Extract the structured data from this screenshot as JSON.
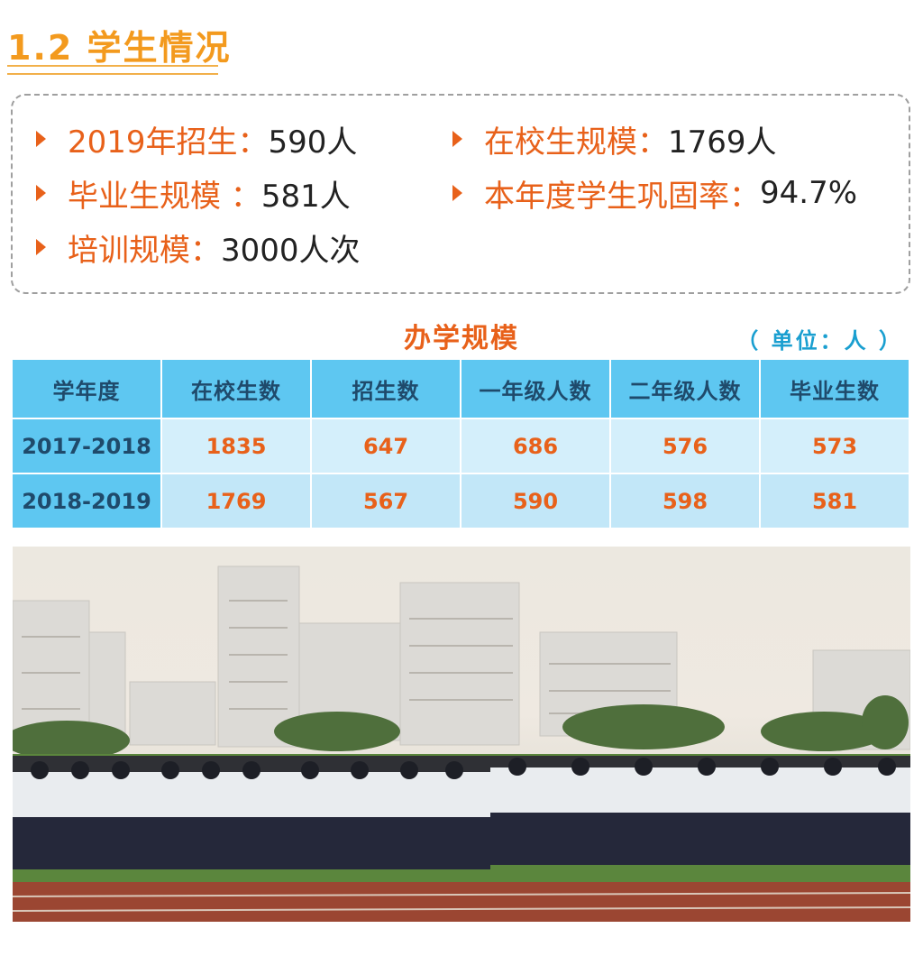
{
  "section": {
    "title": "1.2 学生情况"
  },
  "stats": [
    {
      "label": "2019年招生：",
      "value": "590人"
    },
    {
      "label": "在校生规模：",
      "value": "1769人"
    },
    {
      "label": "毕业生规模 ：",
      "value": "581人"
    },
    {
      "label": "本年度学生巩固率：",
      "value": "94.7%"
    },
    {
      "label": "培训规模：",
      "value": "3000人次"
    }
  ],
  "table": {
    "title": "办学规模",
    "unit": "（ 单位：人 ）",
    "headers": [
      "学年度",
      "在校生数",
      "招生数",
      "一年级人数",
      "二年级人数",
      "毕业生数"
    ],
    "rows": [
      [
        "2017-2018",
        "1835",
        "647",
        "686",
        "576",
        "573"
      ],
      [
        "2018-2019",
        "1769",
        "567",
        "590",
        "598",
        "581"
      ]
    ]
  },
  "colors": {
    "title_orange": "#f39a1e",
    "label_orange": "#e8611a",
    "header_blue": "#5ec7f1",
    "cell_light_blue": "#d4effb",
    "unit_blue": "#1a9fd0"
  }
}
